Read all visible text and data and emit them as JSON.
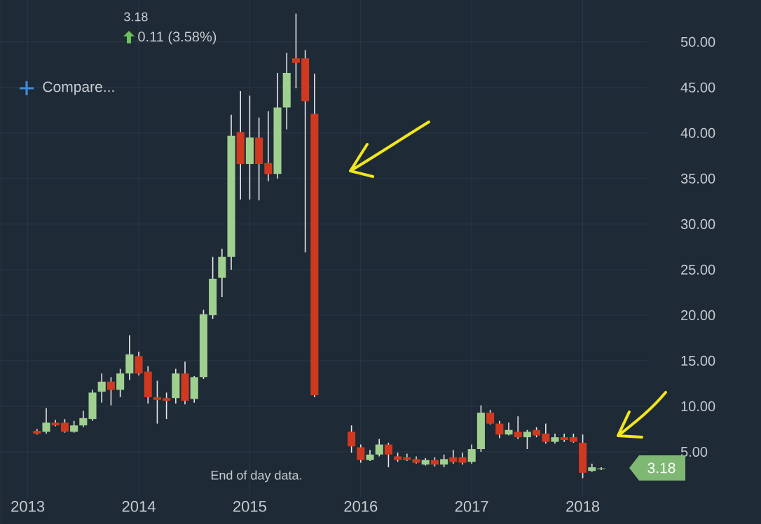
{
  "chart_data": {
    "type": "candlestick",
    "x": [
      "2013-02",
      "2013-03",
      "2013-04",
      "2013-05",
      "2013-06",
      "2013-07",
      "2013-08",
      "2013-09",
      "2013-10",
      "2013-11",
      "2013-12",
      "2014-01",
      "2014-02",
      "2014-03",
      "2014-04",
      "2014-05",
      "2014-06",
      "2014-07",
      "2014-08",
      "2014-09",
      "2014-10",
      "2014-11",
      "2014-12",
      "2015-01",
      "2015-02",
      "2015-03",
      "2015-04",
      "2015-05",
      "2015-06",
      "2015-07",
      "2015-08",
      "2015-12",
      "2016-01",
      "2016-02",
      "2016-03",
      "2016-04",
      "2016-05",
      "2016-06",
      "2016-07",
      "2016-08",
      "2016-09",
      "2016-10",
      "2016-11",
      "2016-12",
      "2017-01",
      "2017-02",
      "2017-03",
      "2017-04",
      "2017-05",
      "2017-06",
      "2017-07",
      "2017-08",
      "2017-09",
      "2017-10",
      "2017-11",
      "2017-12",
      "2018-01",
      "2018-02",
      "2018-03"
    ],
    "ohlc": [
      [
        7.3,
        7.5,
        6.9,
        7.0
      ],
      [
        7.2,
        9.8,
        7.0,
        8.2
      ],
      [
        8.2,
        8.5,
        7.8,
        7.9
      ],
      [
        8.2,
        8.6,
        7.1,
        7.2
      ],
      [
        7.2,
        8.4,
        7.1,
        7.9
      ],
      [
        7.9,
        9.5,
        7.7,
        8.7
      ],
      [
        8.6,
        11.8,
        8.4,
        11.5
      ],
      [
        11.6,
        13.6,
        10.4,
        12.7
      ],
      [
        12.7,
        13.2,
        10.1,
        11.8
      ],
      [
        11.8,
        14.1,
        11.0,
        13.6
      ],
      [
        13.6,
        17.8,
        12.9,
        15.7
      ],
      [
        15.5,
        16.0,
        13.4,
        13.6
      ],
      [
        13.8,
        14.4,
        10.3,
        11.0
      ],
      [
        11.0,
        12.8,
        8.1,
        10.7
      ],
      [
        10.9,
        11.5,
        8.6,
        10.6
      ],
      [
        10.9,
        14.1,
        10.3,
        13.6
      ],
      [
        13.6,
        14.9,
        10.2,
        10.6
      ],
      [
        10.8,
        13.3,
        10.4,
        13.2
      ],
      [
        13.2,
        20.6,
        13.0,
        20.1
      ],
      [
        20.0,
        26.4,
        19.6,
        24.0
      ],
      [
        24.1,
        27.3,
        22.0,
        26.4
      ],
      [
        26.4,
        42.0,
        25.0,
        39.7
      ],
      [
        40.1,
        44.6,
        32.7,
        36.6
      ],
      [
        36.6,
        44.1,
        32.7,
        39.5
      ],
      [
        39.5,
        41.7,
        32.6,
        36.6
      ],
      [
        36.7,
        42.4,
        34.7,
        35.5
      ],
      [
        35.5,
        46.6,
        35.0,
        42.8
      ],
      [
        42.8,
        48.8,
        40.4,
        46.6
      ],
      [
        48.2,
        53.1,
        44.9,
        47.7
      ],
      [
        48.2,
        49.1,
        26.9,
        43.5
      ],
      [
        42.1,
        46.5,
        11.0,
        11.2
      ],
      [
        7.2,
        7.9,
        4.9,
        5.6
      ],
      [
        5.5,
        5.8,
        3.8,
        4.1
      ],
      [
        4.1,
        5.2,
        4.0,
        4.7
      ],
      [
        4.7,
        6.4,
        4.5,
        5.8
      ],
      [
        5.8,
        6.0,
        3.3,
        4.7
      ],
      [
        4.5,
        4.9,
        3.9,
        4.1
      ],
      [
        4.4,
        4.8,
        4.0,
        4.1
      ],
      [
        4.2,
        4.5,
        3.7,
        3.8
      ],
      [
        3.6,
        4.3,
        3.5,
        4.1
      ],
      [
        4.1,
        4.4,
        3.4,
        3.6
      ],
      [
        3.6,
        4.7,
        3.3,
        4.2
      ],
      [
        4.4,
        5.2,
        3.7,
        3.9
      ],
      [
        4.4,
        4.9,
        3.6,
        3.8
      ],
      [
        3.9,
        5.8,
        3.7,
        5.3
      ],
      [
        5.3,
        10.1,
        5.0,
        9.3
      ],
      [
        9.3,
        9.6,
        8.0,
        8.1
      ],
      [
        8.1,
        8.4,
        6.5,
        6.9
      ],
      [
        6.9,
        8.2,
        6.8,
        7.4
      ],
      [
        7.2,
        8.9,
        6.4,
        6.6
      ],
      [
        6.6,
        7.4,
        5.3,
        7.2
      ],
      [
        7.4,
        7.7,
        6.6,
        6.8
      ],
      [
        7.0,
        8.1,
        5.9,
        6.1
      ],
      [
        6.1,
        7.0,
        5.9,
        6.6
      ],
      [
        6.6,
        7.0,
        6.1,
        6.3
      ],
      [
        6.6,
        7.0,
        6.0,
        6.1
      ],
      [
        6.0,
        6.9,
        2.1,
        2.7
      ],
      [
        2.9,
        3.7,
        2.8,
        3.3
      ],
      [
        3.1,
        3.3,
        3.0,
        3.18
      ]
    ],
    "colors": [
      "#d0391f",
      "#9fd08f",
      "#d0391f",
      "#d0391f",
      "#9fd08f",
      "#9fd08f",
      "#9fd08f",
      "#9fd08f",
      "#d0391f",
      "#9fd08f",
      "#9fd08f",
      "#d0391f",
      "#d0391f",
      "#d0391f",
      "#d0391f",
      "#9fd08f",
      "#d0391f",
      "#9fd08f",
      "#9fd08f",
      "#9fd08f",
      "#9fd08f",
      "#9fd08f",
      "#d0391f",
      "#9fd08f",
      "#d0391f",
      "#d0391f",
      "#9fd08f",
      "#9fd08f",
      "#d0391f",
      "#d0391f",
      "#d0391f",
      "#d0391f",
      "#d0391f",
      "#9fd08f",
      "#9fd08f",
      "#d0391f",
      "#d0391f",
      "#d0391f",
      "#d0391f",
      "#9fd08f",
      "#d0391f",
      "#9fd08f",
      "#d0391f",
      "#d0391f",
      "#9fd08f",
      "#9fd08f",
      "#d0391f",
      "#d0391f",
      "#9fd08f",
      "#d0391f",
      "#9fd08f",
      "#d0391f",
      "#d0391f",
      "#9fd08f",
      "#d0391f",
      "#d0391f",
      "#d0391f",
      "#9fd08f",
      "#9fd08f"
    ],
    "xlim": [
      "2012-10",
      "2018-08"
    ],
    "xticks": [
      {
        "value": "2013-01",
        "label": "2013"
      },
      {
        "value": "2014-01",
        "label": "2014"
      },
      {
        "value": "2015-01",
        "label": "2015"
      },
      {
        "value": "2016-01",
        "label": "2016"
      },
      {
        "value": "2017-01",
        "label": "2017"
      },
      {
        "value": "2018-01",
        "label": "2018"
      }
    ],
    "ylim": [
      0,
      54.6
    ],
    "yticks": [
      {
        "value": 5,
        "label": "5.00"
      },
      {
        "value": 10,
        "label": "10.00"
      },
      {
        "value": 15,
        "label": "15.00"
      },
      {
        "value": 20,
        "label": "20.00"
      },
      {
        "value": 25,
        "label": "25.00"
      },
      {
        "value": 30,
        "label": "30.00"
      },
      {
        "value": 35,
        "label": "35.00"
      },
      {
        "value": 40,
        "label": "40.00"
      },
      {
        "value": 45,
        "label": "45.00"
      },
      {
        "value": 50,
        "label": "50.00"
      }
    ],
    "grid": true,
    "annotations": [
      "3.18",
      "0.11 (3.58%)",
      "Compare...",
      "End of day data.",
      "3.18"
    ]
  }
}
